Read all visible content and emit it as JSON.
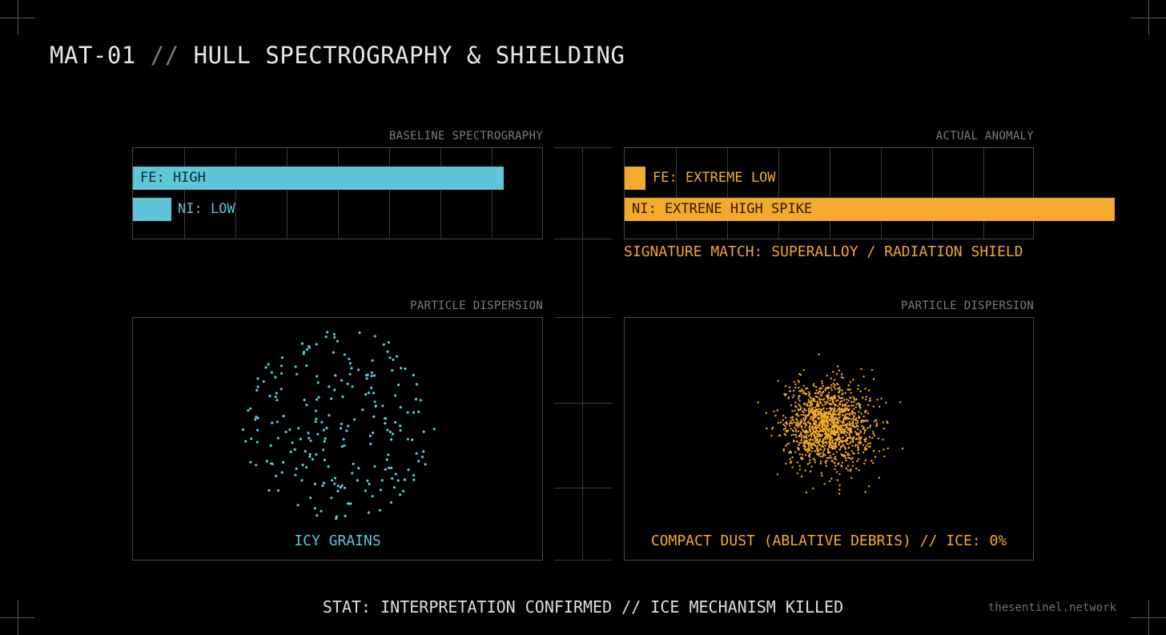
{
  "title": {
    "code": "MAT-01",
    "separator": "//",
    "text": "HULL SPECTROGRAPHY & SHIELDING"
  },
  "colors": {
    "baseline": "#5fc6d8",
    "anomaly": "#f3aa2c",
    "background": "#000000"
  },
  "baseline": {
    "spectro_label": "BASELINE SPECTROGRAPHY",
    "bars": [
      {
        "label": "FE: HIGH",
        "value": 0.906
      },
      {
        "label": "NI: LOW",
        "value": 0.094
      }
    ],
    "dispersion_label": "PARTICLE DISPERSION",
    "caption": "ICY GRAINS",
    "particle_count": 230,
    "particle_spread": "wide"
  },
  "anomaly": {
    "spectro_label": "ACTUAL ANOMALY",
    "bars": [
      {
        "label": "FE: EXTREME LOW",
        "value": 0.05
      },
      {
        "label": "NI: EXTRENE HIGH SPIKE",
        "value": 1.2
      }
    ],
    "signature": "SIGNATURE MATCH: SUPERALLOY / RADIATION SHIELD",
    "dispersion_label": "PARTICLE DISPERSION",
    "caption": "COMPACT DUST (ABLATIVE DEBRIS) // ICE: 0%",
    "particle_count": 1400,
    "particle_spread": "compact"
  },
  "status": "STAT: INTERPRETATION CONFIRMED // ICE MECHANISM KILLED",
  "watermark": "thesentinel.network"
}
